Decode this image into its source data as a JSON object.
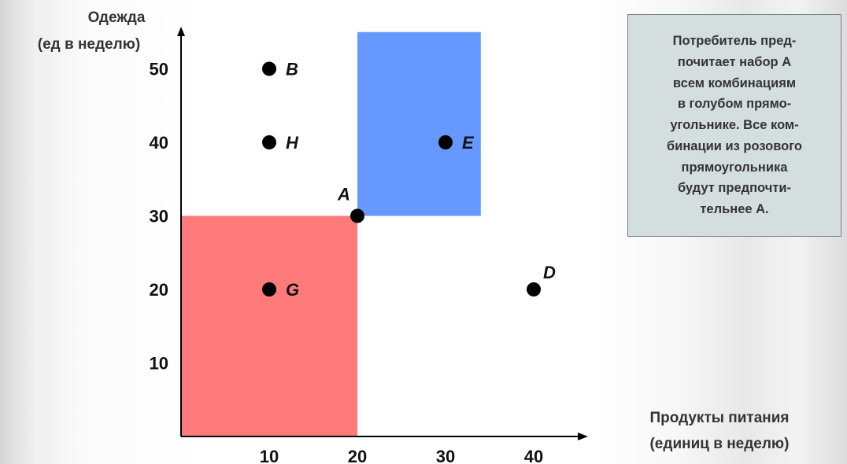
{
  "chart_data": {
    "type": "scatter",
    "ylabel_lines": [
      "Одежда",
      "(ед в неделю)"
    ],
    "xlabel_lines": [
      "Продукты питания",
      "(единиц в неделю)"
    ],
    "x_ticks": [
      "10",
      "20",
      "30",
      "40"
    ],
    "y_ticks": [
      "10",
      "20",
      "30",
      "40",
      "50"
    ],
    "xlim": [
      0,
      45
    ],
    "ylim": [
      0,
      55
    ],
    "points": [
      {
        "label": "B",
        "x": 10,
        "y": 50
      },
      {
        "label": "H",
        "x": 10,
        "y": 40
      },
      {
        "label": "E",
        "x": 30,
        "y": 40
      },
      {
        "label": "A",
        "x": 20,
        "y": 30
      },
      {
        "label": "G",
        "x": 10,
        "y": 20
      },
      {
        "label": "D",
        "x": 40,
        "y": 20
      }
    ],
    "regions": [
      {
        "name": "blue",
        "color": "#6699ff",
        "x": [
          20,
          34
        ],
        "y": [
          30,
          55
        ]
      },
      {
        "name": "pink",
        "color": "#ff7a7a",
        "x": [
          0,
          20
        ],
        "y": [
          0,
          30
        ]
      }
    ],
    "grid": false,
    "colors": {
      "point": "#000000",
      "axis": "#000000"
    }
  },
  "note": {
    "text": "Потребитель пред-\nпочитает набор А\nвсем комбинациям\nв голубом прямо-\nугольнике. Все ком-\nбинации из розового\nпрямоугольника\nбудут предпочти-\nтельнее  А."
  }
}
